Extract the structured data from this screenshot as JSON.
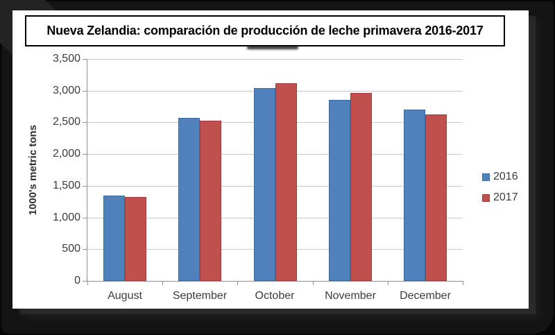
{
  "title_box": {
    "text": "Nueva Zelandia: comparación de producción de leche primavera 2016-2017"
  },
  "chart_data": {
    "type": "bar",
    "categories": [
      "August",
      "September",
      "October",
      "November",
      "December"
    ],
    "series": [
      {
        "name": "2016",
        "color": "#4F81BD",
        "border_color": "#3A6B9F",
        "values": [
          1350,
          2570,
          3040,
          2850,
          2700
        ]
      },
      {
        "name": "2017",
        "color": "#C0504D",
        "border_color": "#9E3D3B",
        "values": [
          1320,
          2530,
          3120,
          2960,
          2620
        ]
      }
    ],
    "title": "",
    "xlabel": "",
    "ylabel": "1000's metric tons",
    "ylim": [
      0,
      3500
    ],
    "ytick_step": 500,
    "ytick_labels": [
      "0",
      "500",
      "1,000",
      "1,500",
      "2,000",
      "2,500",
      "3,000",
      "3,500"
    ],
    "grid": true,
    "legend_position": "right",
    "legend_entries": [
      "2016",
      "2017"
    ]
  },
  "colors": {
    "bar_2016": "#4F81BD",
    "bar_2017": "#C0504D",
    "gridline": "#c9c9c9",
    "axis": "#8f8f8f",
    "panel_background": "#ffffff",
    "slide_background": "#141414"
  }
}
